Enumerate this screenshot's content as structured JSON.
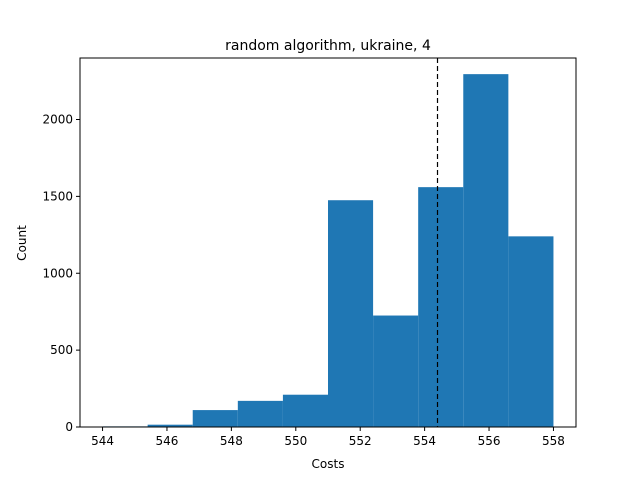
{
  "chart_data": {
    "type": "bar",
    "title": "random algorithm, ukraine, 4",
    "xlabel": "Costs",
    "ylabel": "Count",
    "xlim": [
      543.3,
      558.7
    ],
    "ylim": [
      0,
      2400
    ],
    "xticks": [
      544,
      546,
      548,
      550,
      552,
      554,
      556,
      558
    ],
    "yticks": [
      0,
      500,
      1000,
      1500,
      2000
    ],
    "bins": [
      {
        "x0": 544.0,
        "x1": 545.4,
        "count": 4
      },
      {
        "x0": 545.4,
        "x1": 546.8,
        "count": 15
      },
      {
        "x0": 546.8,
        "x1": 548.2,
        "count": 110
      },
      {
        "x0": 548.2,
        "x1": 549.6,
        "count": 170
      },
      {
        "x0": 549.6,
        "x1": 551.0,
        "count": 210
      },
      {
        "x0": 551.0,
        "x1": 552.4,
        "count": 1475
      },
      {
        "x0": 552.4,
        "x1": 553.8,
        "count": 725
      },
      {
        "x0": 553.8,
        "x1": 555.2,
        "count": 1560
      },
      {
        "x0": 555.2,
        "x1": 556.6,
        "count": 2295
      },
      {
        "x0": 556.6,
        "x1": 558.0,
        "count": 1240
      }
    ],
    "mean_line": 554.4,
    "bar_color": "#1f77b4",
    "mean_line_color": "#000000",
    "grid": false,
    "legend": "none"
  }
}
